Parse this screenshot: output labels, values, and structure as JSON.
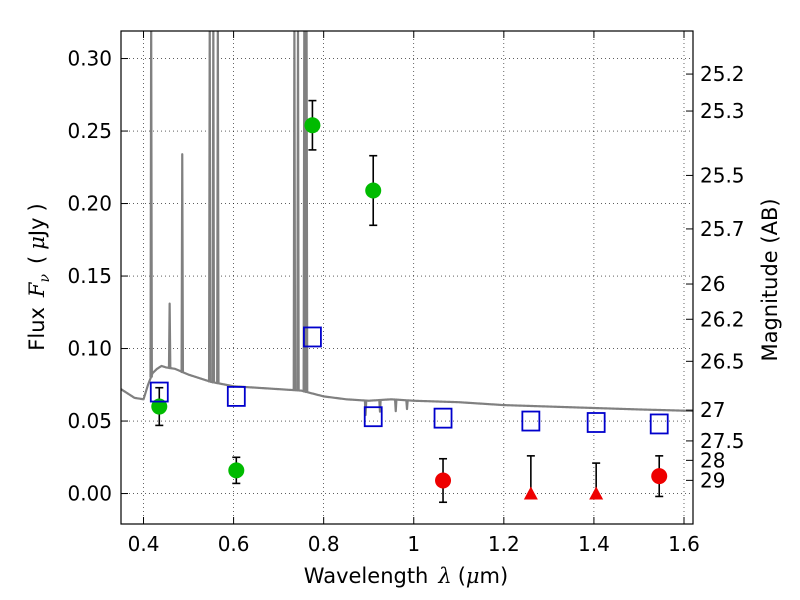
{
  "chart_data": {
    "type": "scatter",
    "xlabel_parts": [
      "Wavelength",
      "λ",
      "(",
      "μ",
      "m)"
    ],
    "ylabel_parts": [
      "Flux",
      "F",
      "ν",
      "(",
      "μ",
      "Jy",
      ")"
    ],
    "y2label": "Magnitude (AB)",
    "xlim": [
      0.35,
      1.62
    ],
    "ylim": [
      -0.021,
      0.319
    ],
    "xticks": [
      0.4,
      0.6,
      0.8,
      1.0,
      1.2,
      1.4,
      1.6
    ],
    "xtick_labels": [
      "0.4",
      "0.6",
      "0.8",
      "1",
      "1.2",
      "1.4",
      "1.6"
    ],
    "yticks": [
      0.0,
      0.05,
      0.1,
      0.15,
      0.2,
      0.25,
      0.3
    ],
    "ytick_labels": [
      "0.00",
      "0.05",
      "0.10",
      "0.15",
      "0.20",
      "0.25",
      "0.30"
    ],
    "y2ticks": [
      {
        "label": "25.2",
        "flux": 0.2893
      },
      {
        "label": "25.3",
        "flux": 0.2638
      },
      {
        "label": "25.5",
        "flux": 0.2194
      },
      {
        "label": "25.7",
        "flux": 0.1825
      },
      {
        "label": "26",
        "flux": 0.1445
      },
      {
        "label": "26.2",
        "flux": 0.1202
      },
      {
        "label": "26.5",
        "flux": 0.0912
      },
      {
        "label": "27",
        "flux": 0.0575
      },
      {
        "label": "27.5",
        "flux": 0.0363
      },
      {
        "label": "28",
        "flux": 0.0229
      },
      {
        "label": "29",
        "flux": 0.0091
      }
    ],
    "grid": true,
    "series": [
      {
        "marker": "filled-circle",
        "color": "#00bb00",
        "points": [
          {
            "x": 0.435,
            "y": 0.06,
            "err": 0.013
          },
          {
            "x": 0.606,
            "y": 0.016,
            "err": 0.009
          },
          {
            "x": 0.775,
            "y": 0.254,
            "err": 0.017
          },
          {
            "x": 0.91,
            "y": 0.209,
            "err": 0.024
          }
        ]
      },
      {
        "marker": "filled-circle",
        "color": "#ee0000",
        "points": [
          {
            "x": 1.065,
            "y": 0.009,
            "err": 0.015
          },
          {
            "x": 1.545,
            "y": 0.012,
            "err": 0.014
          }
        ]
      },
      {
        "marker": "filled-triangle",
        "color": "#ee0000",
        "points": [
          {
            "x": 1.26,
            "y": 0.0,
            "err_up": 0.026
          },
          {
            "x": 1.405,
            "y": 0.0,
            "err_up": 0.021
          }
        ]
      },
      {
        "marker": "open-square",
        "color": "#0000cc",
        "points": [
          {
            "x": 0.435,
            "y": 0.07
          },
          {
            "x": 0.606,
            "y": 0.067
          },
          {
            "x": 0.775,
            "y": 0.108
          },
          {
            "x": 0.91,
            "y": 0.053
          },
          {
            "x": 1.065,
            "y": 0.052
          },
          {
            "x": 1.26,
            "y": 0.05
          },
          {
            "x": 1.405,
            "y": 0.049
          },
          {
            "x": 1.545,
            "y": 0.048
          }
        ]
      }
    ],
    "model_spectrum": {
      "color": "#808080",
      "continuum": [
        [
          0.35,
          0.072
        ],
        [
          0.38,
          0.066
        ],
        [
          0.4,
          0.065
        ],
        [
          0.41,
          0.075
        ],
        [
          0.42,
          0.083
        ],
        [
          0.43,
          0.086
        ],
        [
          0.44,
          0.088
        ],
        [
          0.45,
          0.087
        ],
        [
          0.47,
          0.086
        ],
        [
          0.5,
          0.082
        ],
        [
          0.55,
          0.077
        ],
        [
          0.6,
          0.074
        ],
        [
          0.65,
          0.073
        ],
        [
          0.7,
          0.072
        ],
        [
          0.75,
          0.071
        ],
        [
          0.8,
          0.067
        ],
        [
          0.85,
          0.065
        ],
        [
          0.9,
          0.064
        ],
        [
          0.95,
          0.065
        ],
        [
          1.0,
          0.064
        ],
        [
          1.1,
          0.063
        ],
        [
          1.2,
          0.061
        ],
        [
          1.3,
          0.06
        ],
        [
          1.4,
          0.059
        ],
        [
          1.5,
          0.058
        ],
        [
          1.62,
          0.057
        ]
      ],
      "emission_lines": [
        {
          "x": 0.417,
          "peak": 0.33
        },
        {
          "x": 0.486,
          "peak": 0.234
        },
        {
          "x": 0.458,
          "peak": 0.131
        },
        {
          "x": 0.547,
          "peak": 0.33
        },
        {
          "x": 0.555,
          "peak": 0.33
        },
        {
          "x": 0.565,
          "peak": 0.33
        },
        {
          "x": 0.735,
          "peak": 0.33
        },
        {
          "x": 0.743,
          "peak": 0.33
        },
        {
          "x": 0.757,
          "peak": 0.33
        },
        {
          "x": 0.762,
          "peak": 0.33
        }
      ],
      "absorption_dips": [
        {
          "x": 0.893,
          "depth": 0.01
        },
        {
          "x": 0.925,
          "depth": 0.008
        },
        {
          "x": 0.96,
          "depth": 0.008
        },
        {
          "x": 0.985,
          "depth": 0.006
        }
      ]
    }
  }
}
